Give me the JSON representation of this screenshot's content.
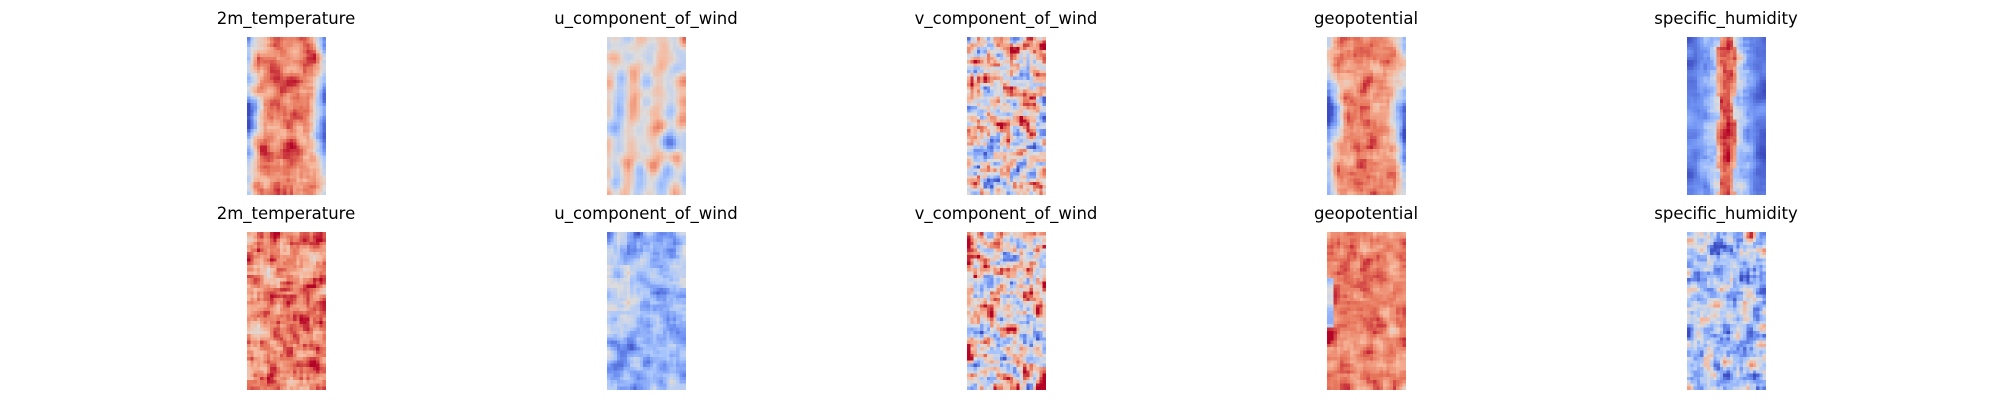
{
  "chart_data": {
    "type": "heatmap",
    "colormap": "coolwarm",
    "colormap_stops": [
      "#3b4cc0",
      "#6f92f3",
      "#aac7fd",
      "#dddcdc",
      "#f7b89c",
      "#e7755b",
      "#b40426"
    ],
    "grid": false,
    "axes_visible": false,
    "layout": {
      "rows": 2,
      "columns": 5
    },
    "panels": [
      {
        "row": 0,
        "title": "2m_temperature",
        "pattern": "warm_core_band"
      },
      {
        "row": 0,
        "title": "u_component_of_wind",
        "pattern": "mixed_streaks"
      },
      {
        "row": 0,
        "title": "v_component_of_wind",
        "pattern": "speckled_noise"
      },
      {
        "row": 0,
        "title": "geopotential",
        "pattern": "warm_core_band"
      },
      {
        "row": 0,
        "title": "specific_humidity",
        "pattern": "narrow_hot_spine"
      },
      {
        "row": 1,
        "title": "2m_temperature",
        "pattern": "warm_textured"
      },
      {
        "row": 1,
        "title": "u_component_of_wind",
        "pattern": "cool_streaks"
      },
      {
        "row": 1,
        "title": "v_component_of_wind",
        "pattern": "speckled_noise"
      },
      {
        "row": 1,
        "title": "geopotential",
        "pattern": "warm_left_cool"
      },
      {
        "row": 1,
        "title": "specific_humidity",
        "pattern": "cool_speckled"
      }
    ]
  }
}
